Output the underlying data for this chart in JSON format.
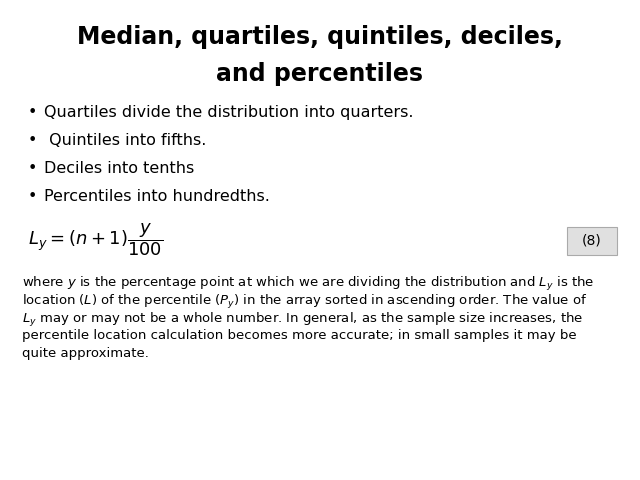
{
  "title_line1": "Median, quartiles, quintiles, deciles,",
  "title_line2": "and percentiles",
  "bullet_points": [
    "Quartiles divide the distribution into quarters.",
    " Quintiles into fifths.",
    "Deciles into tenths",
    "Percentiles into hundredths."
  ],
  "equation_number": "(8)",
  "background_color": "#ffffff",
  "text_color": "#000000",
  "title_fontsize": 17,
  "bullet_fontsize": 11.5,
  "formula_fontsize": 13,
  "paragraph_fontsize": 9.5,
  "eq_number_fontsize": 10
}
